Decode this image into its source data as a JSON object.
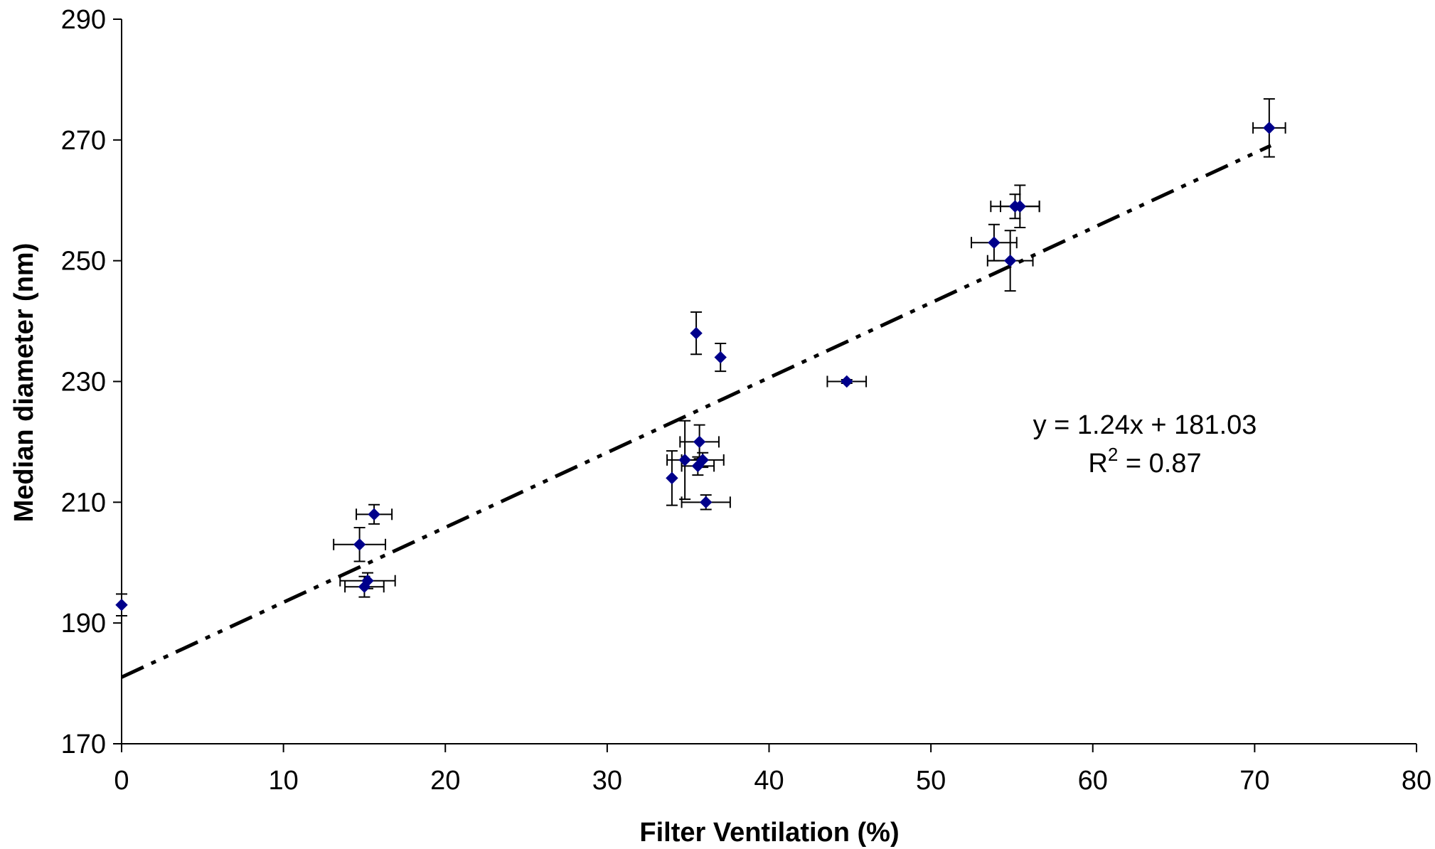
{
  "chart_data": {
    "type": "scatter",
    "xlabel": "Filter Ventilation (%)",
    "ylabel": "Median diameter (nm)",
    "xlim": [
      0,
      80
    ],
    "ylim": [
      170,
      290
    ],
    "xticks": [
      "0",
      "10",
      "20",
      "30",
      "40",
      "50",
      "60",
      "70",
      "80"
    ],
    "yticks": [
      "170",
      "190",
      "210",
      "230",
      "250",
      "270",
      "290"
    ],
    "grid": false,
    "legend": "none",
    "marker_color": "#00008B",
    "points": [
      {
        "x": 0,
        "y": 193,
        "xerr": 0,
        "yerr": 1.8
      },
      {
        "x": 14.7,
        "y": 203,
        "xerr": 1.6,
        "yerr": 2.8
      },
      {
        "x": 15.6,
        "y": 208,
        "xerr": 1.1,
        "yerr": 1.6
      },
      {
        "x": 15.2,
        "y": 197,
        "xerr": 1.7,
        "yerr": 1.3
      },
      {
        "x": 15.0,
        "y": 196,
        "xerr": 1.2,
        "yerr": 1.7
      },
      {
        "x": 34.0,
        "y": 214,
        "xerr": 0,
        "yerr": 4.5
      },
      {
        "x": 34.8,
        "y": 217,
        "xerr": 1.1,
        "yerr": 6.5
      },
      {
        "x": 35.5,
        "y": 238,
        "xerr": 0,
        "yerr": 3.5
      },
      {
        "x": 35.7,
        "y": 220,
        "xerr": 1.2,
        "yerr": 2.8
      },
      {
        "x": 35.6,
        "y": 216,
        "xerr": 1.0,
        "yerr": 1.5
      },
      {
        "x": 35.9,
        "y": 217,
        "xerr": 1.3,
        "yerr": 1.2
      },
      {
        "x": 36.1,
        "y": 210,
        "xerr": 1.5,
        "yerr": 1.2
      },
      {
        "x": 37.0,
        "y": 234,
        "xerr": 0,
        "yerr": 2.3
      },
      {
        "x": 44.8,
        "y": 230,
        "xerr": 1.2,
        "yerr": 0.3
      },
      {
        "x": 53.9,
        "y": 253,
        "xerr": 1.4,
        "yerr": 3.0
      },
      {
        "x": 54.9,
        "y": 250,
        "xerr": 1.4,
        "yerr": 5.0
      },
      {
        "x": 55.2,
        "y": 259,
        "xerr": 1.5,
        "yerr": 2.0
      },
      {
        "x": 55.5,
        "y": 259,
        "xerr": 1.2,
        "yerr": 3.5
      },
      {
        "x": 70.9,
        "y": 272,
        "xerr": 1.0,
        "yerr": 4.8
      }
    ],
    "trendline": {
      "slope": 1.24,
      "intercept": 181.03,
      "x_range": [
        0,
        71
      ],
      "style": "dash-dot-dot"
    },
    "equation_text": "y = 1.24x + 181.03",
    "r2_prefix": "R",
    "r2_superscript": "2",
    "r2_value_text": " = 0.87"
  }
}
